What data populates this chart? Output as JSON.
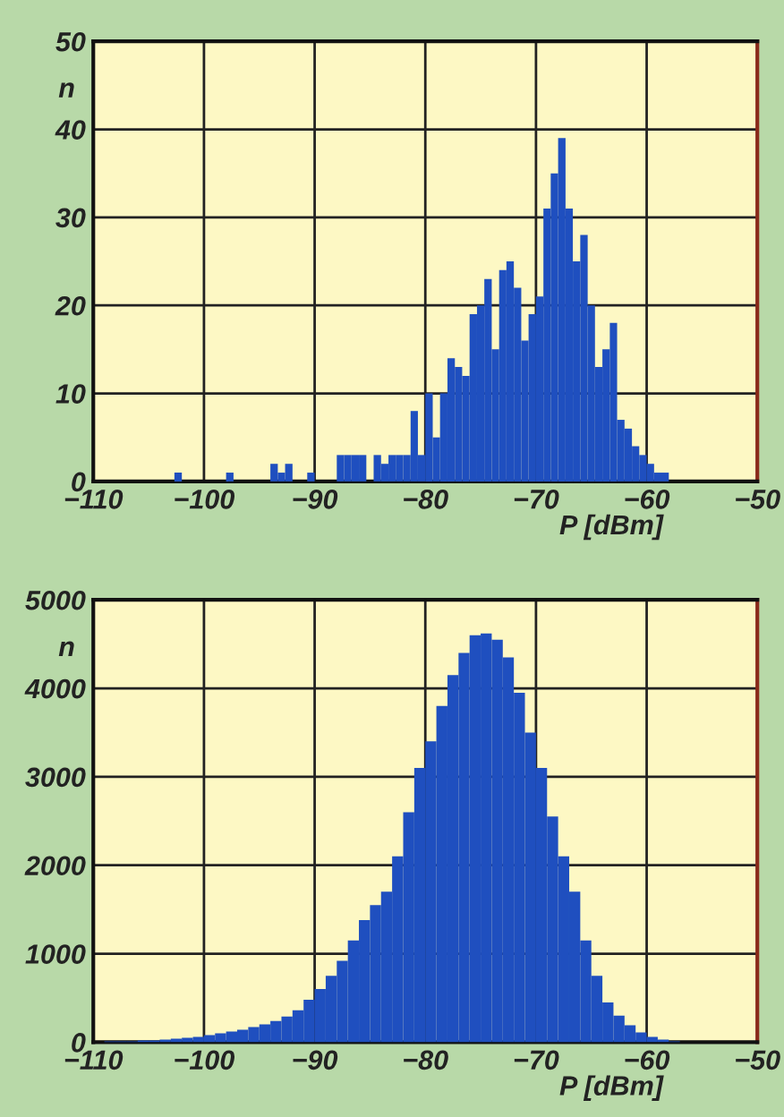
{
  "chart_data": [
    {
      "type": "histogram",
      "xlabel": "P [dBm]",
      "ylabel": "n",
      "color": "#1f4fbf",
      "bins": [
        -102.67,
        -102,
        -101.33,
        -100.67,
        -100,
        -99.33,
        -98.67,
        -98,
        -97.33,
        -96.67,
        -96,
        -95.33,
        -94.67,
        -94,
        -93.33,
        -92.67,
        -92,
        -91.33,
        -90.67,
        -90,
        -89.33,
        -88.67,
        -88,
        -87.33,
        -86.67,
        -86,
        -85.33,
        -84.67,
        -84,
        -83.33,
        -82.67,
        -82,
        -81.33,
        -80.67,
        -80,
        -79.33,
        -78.67,
        -78,
        -77.33,
        -76.67,
        -76,
        -75.33,
        -74.67,
        -74,
        -73.33,
        -72.67,
        -72,
        -71.33,
        -70.67,
        -70,
        -69.33,
        -68.67,
        -68,
        -67.33,
        -66.67,
        -66,
        -65.33,
        -64.67,
        -64,
        -63.33,
        -62.67,
        -62,
        -61.33,
        -60.67,
        -60,
        -59.33,
        -58.67,
        -58
      ],
      "values": [
        1,
        0,
        0,
        0,
        0,
        0,
        0,
        1,
        0,
        0,
        0,
        0,
        0,
        2,
        1,
        2,
        0,
        0,
        1,
        0,
        0,
        0,
        3,
        3,
        3,
        3,
        0,
        3,
        2,
        3,
        3,
        3,
        8,
        3,
        10,
        5,
        10,
        14,
        13,
        12,
        19,
        20,
        23,
        15,
        24,
        25,
        22,
        16,
        19,
        21,
        31,
        35,
        39,
        31,
        25,
        28,
        20,
        13,
        15,
        18,
        7,
        6,
        4,
        3,
        2,
        1,
        1
      ],
      "xlim": [
        -110,
        -50
      ],
      "xticks": [
        -110,
        -100,
        -90,
        -80,
        -70,
        -60,
        -50
      ],
      "ylim": [
        0,
        50
      ],
      "yticks": [
        0,
        10,
        20,
        30,
        40,
        50
      ],
      "grid": true
    },
    {
      "type": "histogram",
      "xlabel": "P [dBm]",
      "ylabel": "n",
      "color": "#1f4fbf",
      "bins": [
        -109,
        -108,
        -107,
        -106,
        -105,
        -104,
        -103,
        -102,
        -101,
        -100,
        -99,
        -98,
        -97,
        -96,
        -95,
        -94,
        -93,
        -92,
        -91,
        -90,
        -89,
        -88,
        -87,
        -86,
        -85,
        -84,
        -83,
        -82,
        -81,
        -80,
        -79,
        -78,
        -77,
        -76,
        -75,
        -74,
        -73,
        -72,
        -71,
        -70,
        -69,
        -68,
        -67,
        -66,
        -65,
        -64,
        -63,
        -62,
        -61,
        -60,
        -59,
        -58,
        -57
      ],
      "values": [
        10,
        10,
        10,
        20,
        20,
        30,
        40,
        50,
        60,
        80,
        100,
        120,
        140,
        170,
        200,
        240,
        290,
        360,
        480,
        600,
        750,
        920,
        1150,
        1380,
        1550,
        1700,
        2100,
        2600,
        3100,
        3400,
        3800,
        4150,
        4400,
        4600,
        4620,
        4550,
        4350,
        3950,
        3500,
        3100,
        2550,
        2100,
        1700,
        1150,
        750,
        450,
        300,
        190,
        110,
        60,
        30,
        10
      ],
      "xlim": [
        -110,
        -50
      ],
      "xticks": [
        -110,
        -100,
        -90,
        -80,
        -70,
        -60,
        -50
      ],
      "ylim": [
        0,
        5000
      ],
      "yticks": [
        0,
        1000,
        2000,
        3000,
        4000,
        5000
      ],
      "grid": true
    }
  ]
}
